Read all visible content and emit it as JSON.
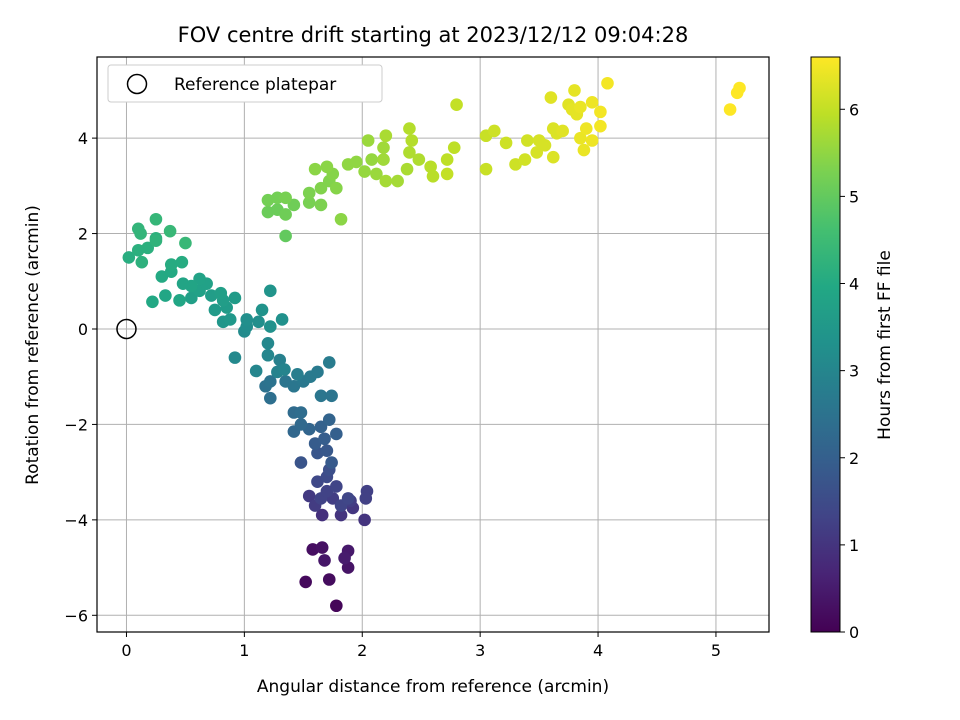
{
  "chart_data": {
    "type": "scatter",
    "title": "FOV centre drift starting at 2023/12/12 09:04:28",
    "xlabel": "Angular distance from reference (arcmin)",
    "ylabel": "Rotation from reference (arcmin)",
    "xlim": [
      -0.25,
      5.45
    ],
    "ylim": [
      -6.35,
      5.7
    ],
    "xticks": [
      0,
      1,
      2,
      3,
      4,
      5
    ],
    "yticks": [
      -6,
      -4,
      -2,
      0,
      2,
      4
    ],
    "xtick_labels": [
      "0",
      "1",
      "2",
      "3",
      "4",
      "5"
    ],
    "ytick_labels": [
      "−6",
      "−4",
      "−2",
      "0",
      "2",
      "4"
    ],
    "grid": true,
    "legend": {
      "placement": "top-left",
      "entries": [
        "Reference platepar"
      ]
    },
    "reference_point": {
      "x": 0,
      "y": 0
    },
    "colorbar": {
      "label": "Hours from first FF file",
      "colormap": "viridis",
      "range": [
        0,
        6.6
      ],
      "ticks": [
        0,
        1,
        2,
        3,
        4,
        5,
        6
      ],
      "tick_labels": [
        "0",
        "1",
        "2",
        "3",
        "4",
        "5",
        "6"
      ]
    },
    "points": [
      {
        "x": 1.78,
        "y": -5.8,
        "h": 0.1
      },
      {
        "x": 1.52,
        "y": -5.3,
        "h": 0.15
      },
      {
        "x": 1.72,
        "y": -5.25,
        "h": 0.2
      },
      {
        "x": 1.58,
        "y": -4.62,
        "h": 0.25
      },
      {
        "x": 1.66,
        "y": -4.58,
        "h": 0.3
      },
      {
        "x": 1.88,
        "y": -5.0,
        "h": 0.35
      },
      {
        "x": 1.68,
        "y": -4.85,
        "h": 0.4
      },
      {
        "x": 1.88,
        "y": -4.65,
        "h": 0.45
      },
      {
        "x": 1.85,
        "y": -4.8,
        "h": 0.5
      },
      {
        "x": 1.66,
        "y": -3.9,
        "h": 0.9
      },
      {
        "x": 1.82,
        "y": -3.9,
        "h": 1.0
      },
      {
        "x": 1.92,
        "y": -3.75,
        "h": 1.05
      },
      {
        "x": 2.02,
        "y": -4.0,
        "h": 1.0
      },
      {
        "x": 1.55,
        "y": -3.5,
        "h": 1.1
      },
      {
        "x": 1.6,
        "y": -3.7,
        "h": 1.15
      },
      {
        "x": 1.75,
        "y": -3.55,
        "h": 1.2
      },
      {
        "x": 1.9,
        "y": -3.6,
        "h": 1.2
      },
      {
        "x": 2.04,
        "y": -3.4,
        "h": 1.25
      },
      {
        "x": 2.03,
        "y": -3.55,
        "h": 1.25
      },
      {
        "x": 1.65,
        "y": -3.55,
        "h": 1.3
      },
      {
        "x": 1.7,
        "y": -3.4,
        "h": 1.3
      },
      {
        "x": 1.78,
        "y": -3.3,
        "h": 1.35
      },
      {
        "x": 1.82,
        "y": -3.7,
        "h": 1.35
      },
      {
        "x": 1.88,
        "y": -3.55,
        "h": 1.4
      },
      {
        "x": 1.62,
        "y": -3.2,
        "h": 1.45
      },
      {
        "x": 1.7,
        "y": -3.1,
        "h": 1.5
      },
      {
        "x": 1.72,
        "y": -2.95,
        "h": 1.6
      },
      {
        "x": 1.48,
        "y": -2.8,
        "h": 1.7
      },
      {
        "x": 1.62,
        "y": -2.6,
        "h": 1.75
      },
      {
        "x": 1.7,
        "y": -2.55,
        "h": 1.8
      },
      {
        "x": 1.74,
        "y": -2.8,
        "h": 1.85
      },
      {
        "x": 1.6,
        "y": -2.4,
        "h": 1.9
      },
      {
        "x": 1.68,
        "y": -2.3,
        "h": 1.95
      },
      {
        "x": 1.78,
        "y": -2.2,
        "h": 2.0
      },
      {
        "x": 1.65,
        "y": -2.05,
        "h": 2.05
      },
      {
        "x": 1.72,
        "y": -1.9,
        "h": 2.1
      },
      {
        "x": 1.55,
        "y": -2.1,
        "h": 2.15
      },
      {
        "x": 1.42,
        "y": -2.15,
        "h": 2.2
      },
      {
        "x": 1.48,
        "y": -2.0,
        "h": 2.25
      },
      {
        "x": 1.42,
        "y": -1.75,
        "h": 2.3
      },
      {
        "x": 1.48,
        "y": -1.75,
        "h": 2.35
      },
      {
        "x": 1.22,
        "y": -1.45,
        "h": 2.4
      },
      {
        "x": 1.18,
        "y": -1.2,
        "h": 2.45
      },
      {
        "x": 1.22,
        "y": -1.1,
        "h": 2.5
      },
      {
        "x": 1.35,
        "y": -1.1,
        "h": 2.55
      },
      {
        "x": 1.42,
        "y": -1.2,
        "h": 2.6
      },
      {
        "x": 1.5,
        "y": -1.1,
        "h": 2.65
      },
      {
        "x": 1.56,
        "y": -1.0,
        "h": 2.7
      },
      {
        "x": 1.65,
        "y": -1.4,
        "h": 2.6
      },
      {
        "x": 1.74,
        "y": -1.4,
        "h": 2.55
      },
      {
        "x": 1.62,
        "y": -0.9,
        "h": 2.7
      },
      {
        "x": 1.72,
        "y": -0.7,
        "h": 2.75
      },
      {
        "x": 1.45,
        "y": -0.95,
        "h": 2.8
      },
      {
        "x": 1.3,
        "y": -0.65,
        "h": 2.85
      },
      {
        "x": 1.28,
        "y": -0.9,
        "h": 2.9
      },
      {
        "x": 1.34,
        "y": -0.85,
        "h": 2.95
      },
      {
        "x": 1.1,
        "y": -0.88,
        "h": 3.0
      },
      {
        "x": 1.2,
        "y": -0.55,
        "h": 3.0
      },
      {
        "x": 1.2,
        "y": -0.3,
        "h": 3.05
      },
      {
        "x": 0.92,
        "y": -0.6,
        "h": 3.1
      },
      {
        "x": 1.0,
        "y": -0.05,
        "h": 3.15
      },
      {
        "x": 1.02,
        "y": 0.05,
        "h": 3.2
      },
      {
        "x": 1.12,
        "y": 0.15,
        "h": 3.25
      },
      {
        "x": 1.02,
        "y": 0.2,
        "h": 3.25
      },
      {
        "x": 1.22,
        "y": 0.05,
        "h": 3.3
      },
      {
        "x": 1.32,
        "y": 0.2,
        "h": 3.3
      },
      {
        "x": 1.15,
        "y": 0.4,
        "h": 3.35
      },
      {
        "x": 1.22,
        "y": 0.8,
        "h": 3.4
      },
      {
        "x": 0.82,
        "y": 0.15,
        "h": 3.45
      },
      {
        "x": 0.88,
        "y": 0.2,
        "h": 3.5
      },
      {
        "x": 0.75,
        "y": 0.4,
        "h": 3.55
      },
      {
        "x": 0.85,
        "y": 0.45,
        "h": 3.6
      },
      {
        "x": 0.92,
        "y": 0.65,
        "h": 3.6
      },
      {
        "x": 0.82,
        "y": 0.6,
        "h": 3.65
      },
      {
        "x": 0.72,
        "y": 0.7,
        "h": 3.65
      },
      {
        "x": 0.8,
        "y": 0.75,
        "h": 3.7
      },
      {
        "x": 0.55,
        "y": 0.65,
        "h": 3.7
      },
      {
        "x": 0.62,
        "y": 0.8,
        "h": 3.75
      },
      {
        "x": 0.68,
        "y": 0.95,
        "h": 3.75
      },
      {
        "x": 0.62,
        "y": 1.05,
        "h": 3.8
      },
      {
        "x": 0.55,
        "y": 0.9,
        "h": 3.85
      },
      {
        "x": 0.48,
        "y": 0.95,
        "h": 3.85
      },
      {
        "x": 0.45,
        "y": 0.6,
        "h": 3.9
      },
      {
        "x": 0.33,
        "y": 0.7,
        "h": 3.9
      },
      {
        "x": 0.22,
        "y": 0.57,
        "h": 3.95
      },
      {
        "x": 0.3,
        "y": 1.1,
        "h": 4.0
      },
      {
        "x": 0.38,
        "y": 1.2,
        "h": 4.0
      },
      {
        "x": 0.38,
        "y": 1.35,
        "h": 4.05
      },
      {
        "x": 0.47,
        "y": 1.4,
        "h": 4.05
      },
      {
        "x": 0.02,
        "y": 1.5,
        "h": 4.1
      },
      {
        "x": 0.1,
        "y": 1.65,
        "h": 4.15
      },
      {
        "x": 0.18,
        "y": 1.7,
        "h": 4.15
      },
      {
        "x": 0.13,
        "y": 1.4,
        "h": 4.2
      },
      {
        "x": 0.25,
        "y": 1.9,
        "h": 4.2
      },
      {
        "x": 0.25,
        "y": 1.85,
        "h": 4.25
      },
      {
        "x": 0.1,
        "y": 2.1,
        "h": 4.3
      },
      {
        "x": 0.12,
        "y": 2.0,
        "h": 4.3
      },
      {
        "x": 0.25,
        "y": 2.3,
        "h": 4.35
      },
      {
        "x": 0.37,
        "y": 2.05,
        "h": 4.4
      },
      {
        "x": 0.5,
        "y": 1.8,
        "h": 4.4
      },
      {
        "x": 1.35,
        "y": 1.95,
        "h": 5.0
      },
      {
        "x": 1.2,
        "y": 2.45,
        "h": 5.1
      },
      {
        "x": 1.28,
        "y": 2.5,
        "h": 5.1
      },
      {
        "x": 1.35,
        "y": 2.4,
        "h": 5.15
      },
      {
        "x": 1.42,
        "y": 2.6,
        "h": 5.15
      },
      {
        "x": 1.2,
        "y": 2.7,
        "h": 5.2
      },
      {
        "x": 1.28,
        "y": 2.75,
        "h": 5.2
      },
      {
        "x": 1.35,
        "y": 2.75,
        "h": 5.25
      },
      {
        "x": 1.55,
        "y": 2.65,
        "h": 5.25
      },
      {
        "x": 1.65,
        "y": 2.6,
        "h": 5.3
      },
      {
        "x": 1.55,
        "y": 2.85,
        "h": 5.3
      },
      {
        "x": 1.65,
        "y": 2.95,
        "h": 5.35
      },
      {
        "x": 1.72,
        "y": 3.1,
        "h": 5.35
      },
      {
        "x": 1.78,
        "y": 2.95,
        "h": 5.4
      },
      {
        "x": 1.75,
        "y": 3.25,
        "h": 5.4
      },
      {
        "x": 1.7,
        "y": 3.4,
        "h": 5.45
      },
      {
        "x": 1.6,
        "y": 3.35,
        "h": 5.45
      },
      {
        "x": 1.82,
        "y": 2.3,
        "h": 5.45
      },
      {
        "x": 1.88,
        "y": 3.45,
        "h": 5.5
      },
      {
        "x": 1.95,
        "y": 3.5,
        "h": 5.5
      },
      {
        "x": 2.02,
        "y": 3.3,
        "h": 5.55
      },
      {
        "x": 2.08,
        "y": 3.55,
        "h": 5.55
      },
      {
        "x": 2.12,
        "y": 3.25,
        "h": 5.6
      },
      {
        "x": 2.05,
        "y": 3.95,
        "h": 5.6
      },
      {
        "x": 2.18,
        "y": 3.8,
        "h": 5.65
      },
      {
        "x": 2.18,
        "y": 3.55,
        "h": 5.65
      },
      {
        "x": 2.2,
        "y": 3.1,
        "h": 5.7
      },
      {
        "x": 2.3,
        "y": 3.1,
        "h": 5.7
      },
      {
        "x": 2.2,
        "y": 4.05,
        "h": 5.75
      },
      {
        "x": 2.38,
        "y": 3.35,
        "h": 5.75
      },
      {
        "x": 2.4,
        "y": 3.7,
        "h": 5.8
      },
      {
        "x": 2.48,
        "y": 3.55,
        "h": 5.8
      },
      {
        "x": 2.4,
        "y": 4.2,
        "h": 5.85
      },
      {
        "x": 2.42,
        "y": 3.95,
        "h": 5.85
      },
      {
        "x": 2.58,
        "y": 3.4,
        "h": 5.9
      },
      {
        "x": 2.6,
        "y": 3.2,
        "h": 5.9
      },
      {
        "x": 2.72,
        "y": 3.55,
        "h": 5.95
      },
      {
        "x": 2.78,
        "y": 3.8,
        "h": 5.95
      },
      {
        "x": 2.8,
        "y": 4.7,
        "h": 6.0
      },
      {
        "x": 2.72,
        "y": 3.25,
        "h": 6.0
      },
      {
        "x": 3.05,
        "y": 3.35,
        "h": 6.05
      },
      {
        "x": 3.05,
        "y": 4.05,
        "h": 6.05
      },
      {
        "x": 3.12,
        "y": 4.15,
        "h": 6.1
      },
      {
        "x": 3.22,
        "y": 3.9,
        "h": 6.1
      },
      {
        "x": 3.3,
        "y": 3.45,
        "h": 6.1
      },
      {
        "x": 3.38,
        "y": 3.55,
        "h": 6.15
      },
      {
        "x": 3.4,
        "y": 3.95,
        "h": 6.15
      },
      {
        "x": 3.48,
        "y": 3.7,
        "h": 6.2
      },
      {
        "x": 3.55,
        "y": 3.85,
        "h": 6.2
      },
      {
        "x": 3.5,
        "y": 3.95,
        "h": 6.2
      },
      {
        "x": 3.62,
        "y": 3.6,
        "h": 6.25
      },
      {
        "x": 3.65,
        "y": 4.1,
        "h": 6.25
      },
      {
        "x": 3.62,
        "y": 4.2,
        "h": 6.25
      },
      {
        "x": 3.7,
        "y": 4.15,
        "h": 6.3
      },
      {
        "x": 3.6,
        "y": 4.85,
        "h": 6.3
      },
      {
        "x": 3.75,
        "y": 4.7,
        "h": 6.3
      },
      {
        "x": 3.78,
        "y": 4.6,
        "h": 6.35
      },
      {
        "x": 3.82,
        "y": 4.5,
        "h": 6.35
      },
      {
        "x": 3.8,
        "y": 5.0,
        "h": 6.35
      },
      {
        "x": 3.85,
        "y": 4.65,
        "h": 6.4
      },
      {
        "x": 3.85,
        "y": 4.0,
        "h": 6.4
      },
      {
        "x": 3.88,
        "y": 3.75,
        "h": 6.4
      },
      {
        "x": 3.9,
        "y": 4.2,
        "h": 6.45
      },
      {
        "x": 3.95,
        "y": 3.95,
        "h": 6.45
      },
      {
        "x": 3.95,
        "y": 4.75,
        "h": 6.45
      },
      {
        "x": 4.02,
        "y": 4.55,
        "h": 6.5
      },
      {
        "x": 4.02,
        "y": 4.25,
        "h": 6.5
      },
      {
        "x": 4.08,
        "y": 5.15,
        "h": 6.5
      },
      {
        "x": 5.12,
        "y": 4.6,
        "h": 6.6
      },
      {
        "x": 5.18,
        "y": 4.95,
        "h": 6.6
      },
      {
        "x": 5.2,
        "y": 5.05,
        "h": 6.6
      }
    ]
  }
}
